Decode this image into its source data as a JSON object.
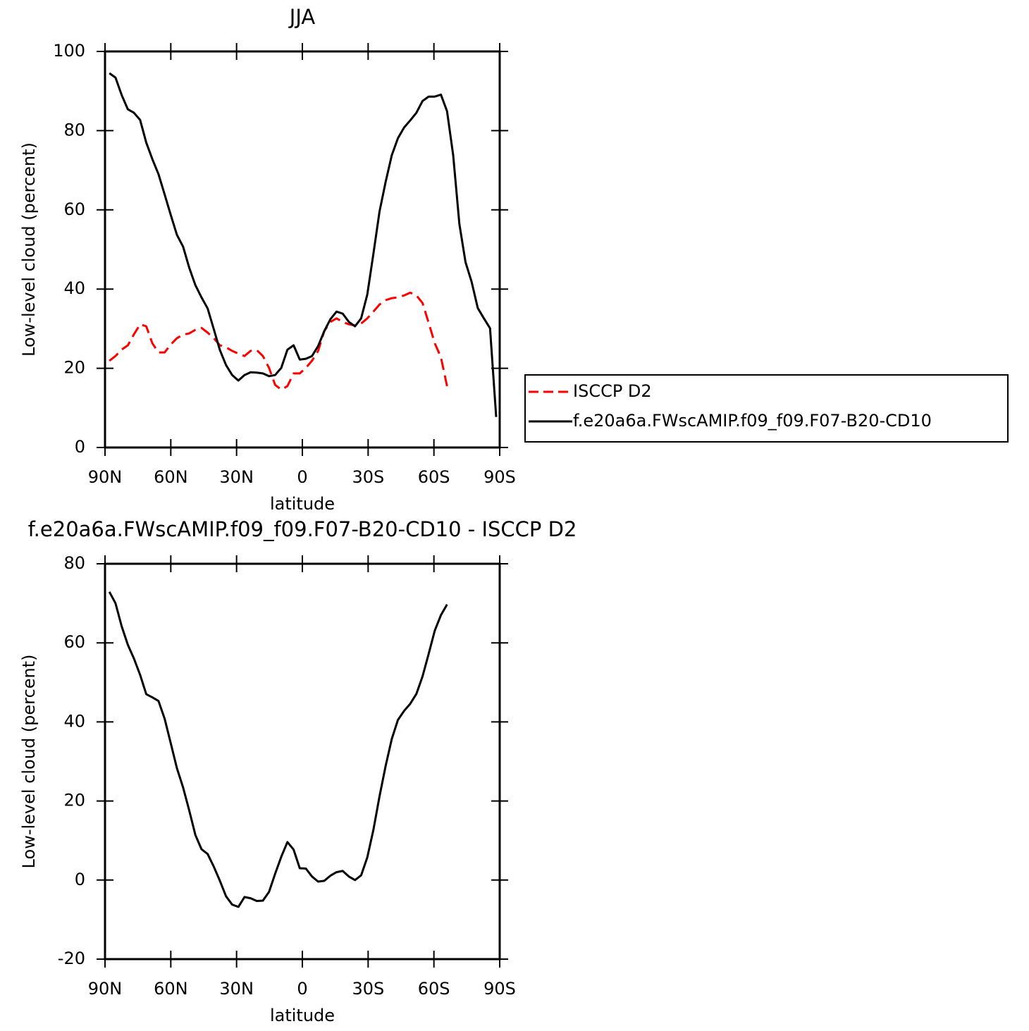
{
  "chart_data": [
    {
      "type": "line",
      "title": "JJA",
      "x_label": "latitude",
      "y_label": "Low-level cloud (percent)",
      "x": [
        88,
        85.2,
        82.4,
        79.6,
        76.8,
        74.0,
        71.2,
        68.4,
        65.6,
        62.8,
        60.0,
        57.2,
        54.4,
        51.6,
        48.8,
        46.0,
        43.2,
        40.4,
        37.6,
        34.8,
        32.0,
        29.2,
        26.4,
        23.6,
        20.8,
        18.0,
        15.2,
        12.4,
        9.6,
        6.8,
        4.0,
        1.2,
        -1.6,
        -4.4,
        -7.2,
        -10.0,
        -12.8,
        -15.6,
        -18.4,
        -21.2,
        -24.0,
        -26.8,
        -29.6,
        -32.4,
        -35.2,
        -38.0,
        -40.8,
        -43.6,
        -46.4,
        -49.2,
        -52.0,
        -54.8,
        -57.6,
        -60.4,
        -63.2,
        -66.0,
        -68.8,
        -71.6,
        -74.4,
        -77.2,
        -80.0,
        -82.8,
        -85.6,
        -88.4
      ],
      "series": [
        {
          "name": "ISCCP D2",
          "color": "#ff0000",
          "linestyle": "dashed",
          "values": [
            21.9,
            23.1,
            24.7,
            25.8,
            28.6,
            31.1,
            30.6,
            26.3,
            24.0,
            24.0,
            26.0,
            27.6,
            28.5,
            28.8,
            29.7,
            30.2,
            29.0,
            27.6,
            25.8,
            25.3,
            24.4,
            23.7,
            23.1,
            24.4,
            24.6,
            23.1,
            20.1,
            15.8,
            14.6,
            15.5,
            18.7,
            18.7,
            20.1,
            21.9,
            24.4,
            29.4,
            31.7,
            32.6,
            31.7,
            31.1,
            30.8,
            31.3,
            32.6,
            34.3,
            36.1,
            37.2,
            37.7,
            37.9,
            38.4,
            39.1,
            38.4,
            36.5,
            31.5,
            26.3,
            22.8,
            15.5,
            null,
            null,
            null,
            null,
            null,
            null,
            null,
            null
          ]
        },
        {
          "name": "f.e20a6a.FWscAMIP.f09_f09.F07-B20-CD10",
          "color": "#000000",
          "linestyle": "solid",
          "values": [
            94.5,
            93.4,
            89.0,
            85.4,
            84.5,
            82.7,
            77.0,
            72.8,
            69.0,
            63.9,
            58.7,
            53.7,
            50.7,
            45.4,
            41.0,
            37.9,
            35.1,
            29.9,
            24.6,
            20.8,
            18.3,
            16.9,
            18.3,
            19.0,
            18.9,
            18.7,
            18.0,
            18.3,
            20.1,
            24.7,
            25.8,
            22.2,
            22.4,
            23.1,
            25.6,
            29.4,
            32.4,
            34.3,
            33.8,
            31.7,
            30.6,
            32.6,
            38.6,
            48.9,
            59.6,
            67.1,
            73.8,
            78.1,
            80.8,
            82.6,
            84.5,
            87.5,
            88.6,
            88.6,
            89.1,
            84.9,
            73.8,
            56.4,
            46.8,
            41.8,
            35.2,
            32.6,
            30.1,
            7.7
          ]
        }
      ],
      "xlim": [
        90,
        -90
      ],
      "xticks": [
        {
          "value": 90,
          "label": "90N"
        },
        {
          "value": 60,
          "label": "60N"
        },
        {
          "value": 30,
          "label": "30N"
        },
        0,
        {
          "value": -30,
          "label": "30S"
        },
        {
          "value": -60,
          "label": "60S"
        },
        {
          "value": -90,
          "label": "90S"
        }
      ],
      "ylim": [
        0,
        100
      ],
      "yticks": [
        0,
        20,
        40,
        60,
        80,
        100
      ],
      "legend": "right"
    },
    {
      "type": "line",
      "title": "f.e20a6a.FWscAMIP.f09_f09.F07-B20-CD10 - ISCCP D2",
      "x_label": "latitude",
      "y_label": "Low-level cloud (percent)",
      "x": [
        88,
        85.2,
        82.4,
        79.6,
        76.8,
        74.0,
        71.2,
        68.4,
        65.6,
        62.8,
        60.0,
        57.2,
        54.4,
        51.6,
        48.8,
        46.0,
        43.2,
        40.4,
        37.6,
        34.8,
        32.0,
        29.2,
        26.4,
        23.6,
        20.8,
        18.0,
        15.2,
        12.4,
        9.6,
        6.8,
        4.0,
        1.2,
        -1.6,
        -4.4,
        -7.2,
        -10.0,
        -12.8,
        -15.6,
        -18.4,
        -21.2,
        -24.0,
        -26.8,
        -29.6,
        -32.4,
        -35.2,
        -38.0,
        -40.8,
        -43.6,
        -46.4,
        -49.2,
        -52.0,
        -54.8,
        -57.6,
        -60.4,
        -63.2,
        -66.0
      ],
      "values": [
        72.9,
        70.0,
        64.2,
        59.5,
        56.0,
        51.9,
        47.0,
        46.2,
        45.3,
        40.8,
        34.6,
        28.3,
        23.4,
        17.6,
        11.4,
        7.8,
        6.6,
        3.4,
        -0.2,
        -4.1,
        -6.2,
        -6.8,
        -4.3,
        -4.6,
        -5.3,
        -5.2,
        -3.0,
        1.6,
        5.9,
        9.6,
        7.7,
        3.0,
        2.9,
        0.9,
        -0.4,
        -0.2,
        1.1,
        2.0,
        2.3,
        0.9,
        0.0,
        1.2,
        5.7,
        12.7,
        21.2,
        28.9,
        35.7,
        40.5,
        42.8,
        44.6,
        47.1,
        51.5,
        57.2,
        63.1,
        67.0,
        69.7
      ],
      "color": "#000000",
      "xlim": [
        90,
        -90
      ],
      "xticks": [
        {
          "value": 90,
          "label": "90N"
        },
        {
          "value": 60,
          "label": "60N"
        },
        {
          "value": 30,
          "label": "30N"
        },
        0,
        {
          "value": -30,
          "label": "30S"
        },
        {
          "value": -60,
          "label": "60S"
        },
        {
          "value": -90,
          "label": "90S"
        }
      ],
      "ylim": [
        -20,
        80
      ],
      "yticks": [
        -20,
        0,
        20,
        40,
        60,
        80
      ]
    }
  ]
}
